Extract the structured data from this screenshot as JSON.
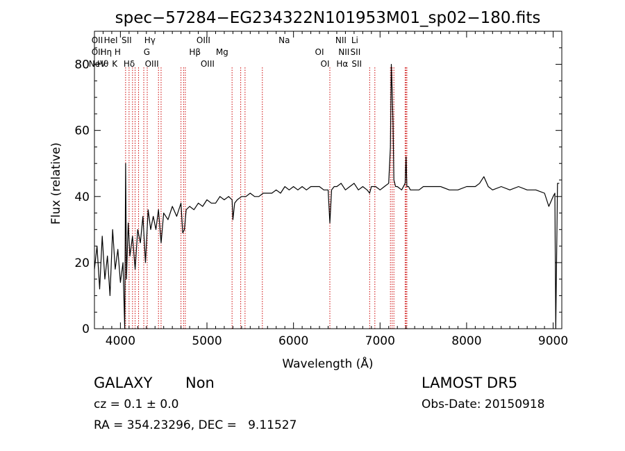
{
  "chart_data": {
    "type": "line",
    "title": "spec−57284−EG234322N101953M01_sp02−180.fits",
    "xlabel": "Wavelength (Å)",
    "ylabel": "Flux (relative)",
    "xlim": [
      3700,
      9100
    ],
    "ylim": [
      0,
      90
    ],
    "xticks": [
      4000,
      5000,
      6000,
      7000,
      8000,
      9000
    ],
    "yticks": [
      0,
      20,
      40,
      60,
      80
    ],
    "grid": false,
    "line_color": "#000000",
    "marker_color": "#cc0000",
    "series": [
      {
        "x": [
          3700,
          3730,
          3760,
          3790,
          3820,
          3850,
          3880,
          3910,
          3940,
          3970,
          4000,
          4030,
          4050,
          4060,
          4070,
          4090,
          4110,
          4140,
          4170,
          4200,
          4230,
          4260,
          4290,
          4320,
          4350,
          4380,
          4410,
          4440,
          4470,
          4500,
          4550,
          4600,
          4650,
          4700,
          4720,
          4740,
          4760,
          4800,
          4850,
          4900,
          4950,
          5000,
          5050,
          5100,
          5150,
          5200,
          5250,
          5290,
          5300,
          5320,
          5350,
          5400,
          5450,
          5500,
          5550,
          5600,
          5650,
          5700,
          5750,
          5800,
          5850,
          5900,
          5950,
          6000,
          6050,
          6100,
          6150,
          6200,
          6250,
          6300,
          6350,
          6400,
          6420,
          6440,
          6470,
          6500,
          6550,
          6600,
          6650,
          6700,
          6750,
          6800,
          6850,
          6880,
          6900,
          6950,
          7000,
          7050,
          7100,
          7120,
          7130,
          7140,
          7150,
          7160,
          7180,
          7200,
          7250,
          7290,
          7300,
          7310,
          7330,
          7350,
          7400,
          7450,
          7500,
          7600,
          7700,
          7800,
          7900,
          8000,
          8100,
          8150,
          8200,
          8250,
          8300,
          8400,
          8500,
          8600,
          8700,
          8800,
          8900,
          8950,
          9000,
          9020,
          9030,
          9050,
          9070
        ],
        "y": [
          18,
          25,
          12,
          28,
          15,
          22,
          10,
          30,
          18,
          24,
          14,
          20,
          0,
          50,
          15,
          32,
          22,
          28,
          18,
          30,
          26,
          34,
          20,
          36,
          30,
          34,
          30,
          36,
          26,
          35,
          33,
          37,
          34,
          38,
          29,
          30,
          36,
          37,
          36,
          38,
          37,
          39,
          38,
          38,
          40,
          39,
          40,
          39,
          33,
          38,
          39,
          40,
          40,
          41,
          40,
          40,
          41,
          41,
          41,
          42,
          41,
          43,
          42,
          43,
          42,
          43,
          42,
          43,
          43,
          43,
          42,
          42,
          32,
          42,
          43,
          43,
          44,
          42,
          43,
          44,
          42,
          43,
          42,
          41,
          43,
          43,
          42,
          43,
          44,
          55,
          80,
          72,
          62,
          45,
          43,
          43,
          42,
          44,
          52,
          43,
          43,
          42,
          42,
          42,
          43,
          43,
          43,
          42,
          42,
          43,
          43,
          44,
          46,
          43,
          42,
          43,
          42,
          43,
          42,
          42,
          41,
          37,
          40,
          41,
          0,
          44,
          44
        ]
      }
    ],
    "line_labels": [
      {
        "name": "NeV",
        "x": 3426,
        "row": 3
      },
      {
        "name": "OII",
        "x": 3727,
        "row": 1
      },
      {
        "name": "OII",
        "x": 3729,
        "row": 2
      },
      {
        "name": "Hθ",
        "x": 3798,
        "row": 3
      },
      {
        "name": "HeI",
        "x": 3889,
        "row": 1
      },
      {
        "name": "Hη",
        "x": 3835,
        "row": 2
      },
      {
        "name": "K",
        "x": 3934,
        "row": 3
      },
      {
        "name": "H",
        "x": 3968,
        "row": 2
      },
      {
        "name": "SII",
        "x": 4072,
        "row": 1
      },
      {
        "name": "Hδ",
        "x": 4102,
        "row": 3
      },
      {
        "name": "Hγ",
        "x": 4340,
        "row": 1
      },
      {
        "name": "G",
        "x": 4305,
        "row": 2
      },
      {
        "name": "OIII",
        "x": 4363,
        "row": 3
      },
      {
        "name": "Hβ",
        "x": 4861,
        "row": 2
      },
      {
        "name": "OIII",
        "x": 4959,
        "row": 1
      },
      {
        "name": "OIII",
        "x": 5007,
        "row": 3
      },
      {
        "name": "Mg",
        "x": 5175,
        "row": 2
      },
      {
        "name": "Na",
        "x": 5893,
        "row": 1
      },
      {
        "name": "OI",
        "x": 6300,
        "row": 2
      },
      {
        "name": "OI",
        "x": 6364,
        "row": 3
      },
      {
        "name": "NII",
        "x": 6548,
        "row": 1
      },
      {
        "name": "NII",
        "x": 6583,
        "row": 2
      },
      {
        "name": "Hα",
        "x": 6563,
        "row": 3
      },
      {
        "name": "Li",
        "x": 6708,
        "row": 1
      },
      {
        "name": "SII",
        "x": 6716,
        "row": 2
      },
      {
        "name": "SII",
        "x": 6731,
        "row": 3
      }
    ],
    "marker_lines": [
      4060,
      4100,
      4140,
      4170,
      4210,
      4270,
      4310,
      4440,
      4470,
      4700,
      4730,
      4750,
      5290,
      5390,
      5440,
      5640,
      6420,
      6880,
      6940,
      7120,
      7140,
      7160,
      7290,
      7300,
      7310
    ]
  },
  "info": {
    "class_label": "GALAXY",
    "subclass_label": "Non",
    "cz_line": "cz = 0.1 ± 0.0",
    "radec_line": "RA = 354.23296, DEC =   9.11527",
    "survey_label": "LAMOST DR5",
    "obs_date_line": "Obs-Date: 20150918"
  }
}
